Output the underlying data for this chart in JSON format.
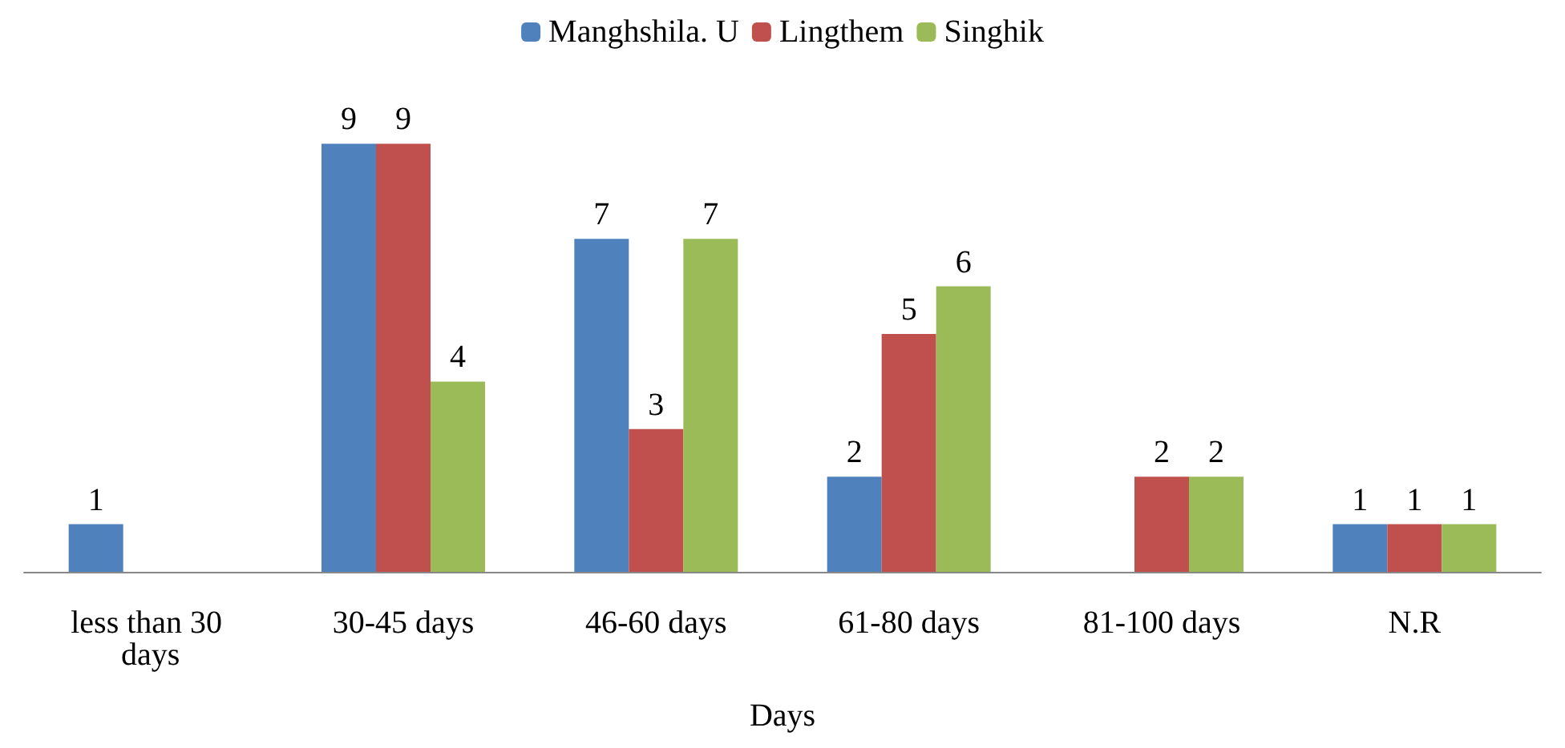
{
  "chart_data": {
    "type": "bar",
    "xlabel": "Days",
    "categories": [
      "less than 30 days",
      "30-45 days",
      "46-60 days",
      "61-80 days",
      "81-100 days",
      "N.R"
    ],
    "series": [
      {
        "name": "Manghshila. U",
        "color": "#4f81bd",
        "values": [
          1,
          9,
          7,
          2,
          null,
          1
        ]
      },
      {
        "name": "Lingthem",
        "color": "#c0504d",
        "values": [
          null,
          9,
          3,
          5,
          2,
          1
        ]
      },
      {
        "name": "Singhik",
        "color": "#9bbb59",
        "values": [
          null,
          4,
          7,
          6,
          2,
          1
        ]
      }
    ],
    "data_labels": true,
    "legend": "top"
  }
}
